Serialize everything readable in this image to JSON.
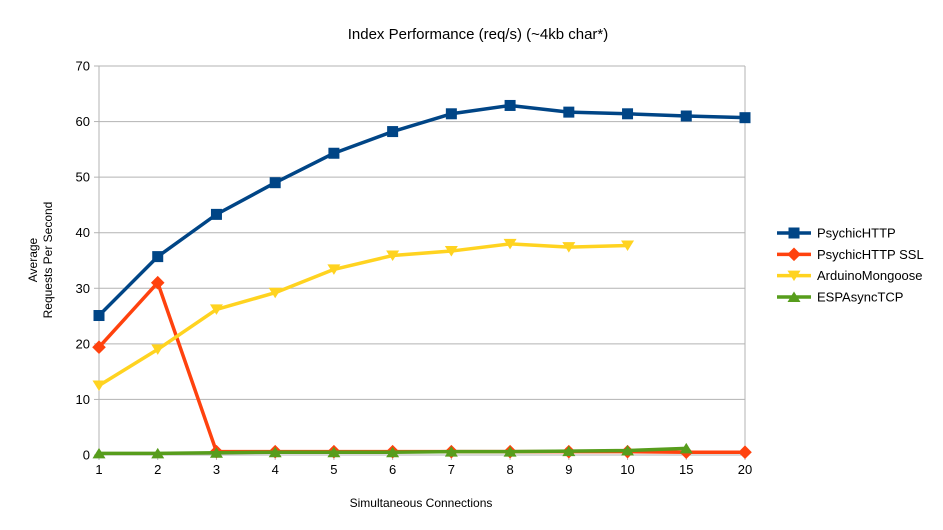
{
  "chart_data": {
    "type": "line",
    "title": "Index Performance (req/s) (~4kb char*)",
    "xlabel": "Simultaneous Connections",
    "ylabel_lines": [
      "Average",
      "Requests Per Second"
    ],
    "categories": [
      "1",
      "2",
      "3",
      "4",
      "5",
      "6",
      "7",
      "8",
      "9",
      "10",
      "15",
      "20"
    ],
    "y_ticks": [
      "0",
      "10",
      "20",
      "30",
      "40",
      "50",
      "60",
      "70"
    ],
    "ylim": [
      0,
      70
    ],
    "x_axis_type": "categorical",
    "grid": "horizontal",
    "legend_position": "right",
    "series": [
      {
        "name": "PsychicHTTP",
        "color": "#004586",
        "marker": "square",
        "values": [
          25.1,
          35.7,
          43.3,
          49.0,
          54.3,
          58.2,
          61.4,
          62.9,
          61.7,
          61.4,
          61.0,
          60.7
        ]
      },
      {
        "name": "PsychicHTTP SSL",
        "color": "#FF420E",
        "marker": "diamond",
        "values": [
          19.4,
          31.0,
          0.6,
          0.6,
          0.6,
          0.6,
          0.6,
          0.6,
          0.6,
          0.6,
          0.5,
          0.5
        ]
      },
      {
        "name": "ArduinoMongoose",
        "color": "#FFD320",
        "marker": "triangle-down",
        "values": [
          12.5,
          19.0,
          26.2,
          29.2,
          33.4,
          35.9,
          36.7,
          38.0,
          37.4,
          37.7,
          null,
          null
        ]
      },
      {
        "name": "ESPAsyncTCP",
        "color": "#579D1C",
        "marker": "triangle-up",
        "values": [
          0.3,
          0.3,
          0.4,
          0.5,
          0.5,
          0.5,
          0.6,
          0.6,
          0.7,
          0.8,
          1.2,
          null
        ]
      }
    ],
    "colors": {
      "grid": "#B3B3B3",
      "axis": "#B3B3B3",
      "text": "#000000",
      "background": "#FFFFFF"
    }
  }
}
